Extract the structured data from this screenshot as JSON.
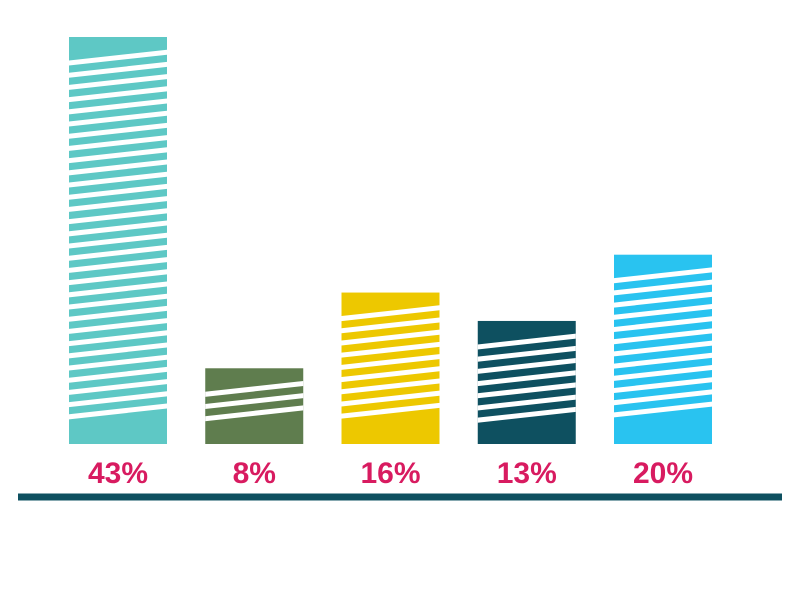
{
  "chart_data": {
    "type": "bar",
    "title": "",
    "xlabel": "",
    "ylabel": "",
    "ylim": [
      0,
      43
    ],
    "categories": [
      "",
      "",
      "",
      "",
      ""
    ],
    "values": [
      43,
      8,
      16,
      13,
      20
    ],
    "value_labels": [
      "43%",
      "8%",
      "16%",
      "13%",
      "20%"
    ],
    "bar_colors": [
      "#5ec8c5",
      "#5f7d4e",
      "#edc800",
      "#0e5060",
      "#29c3f0"
    ],
    "label_color": "#d81b60",
    "baseline_color": "#0e5060",
    "fill_pattern": "diagonal-white-stripes",
    "grid": false,
    "legend": "none"
  }
}
